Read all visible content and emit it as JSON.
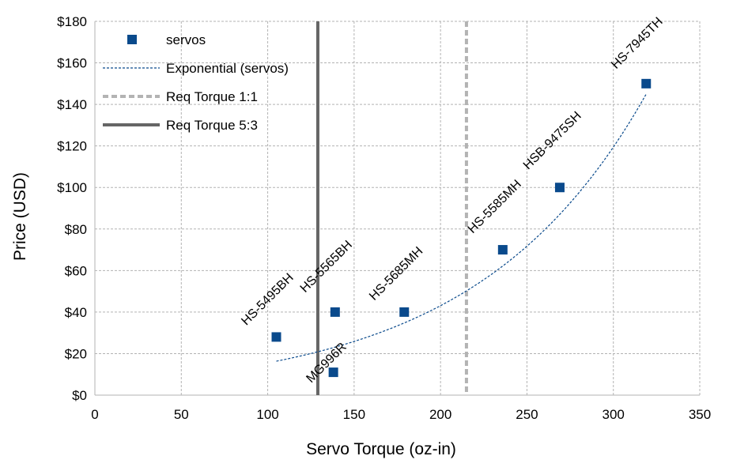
{
  "chart_data": {
    "type": "scatter",
    "title": "",
    "xlabel": "Servo Torque (oz-in)",
    "ylabel": "Price (USD)",
    "xlim": [
      0,
      350
    ],
    "ylim": [
      0,
      180
    ],
    "x_ticks": [
      0,
      50,
      100,
      150,
      200,
      250,
      300,
      350
    ],
    "y_ticks": [
      0,
      20,
      40,
      60,
      80,
      100,
      120,
      140,
      160,
      180
    ],
    "y_tick_labels": [
      "$0",
      "$20",
      "$40",
      "$60",
      "$80",
      "$100",
      "$120",
      "$140",
      "$160",
      "$180"
    ],
    "grid": true,
    "legend_position": "top-left",
    "series": [
      {
        "name": "servos",
        "marker": "square",
        "color": "#0a4a8c",
        "points": [
          {
            "label": "HS-5495BH",
            "x": 105,
            "y": 28
          },
          {
            "label": "MG996R",
            "x": 138,
            "y": 11
          },
          {
            "label": "HS-5565BH",
            "x": 139,
            "y": 40
          },
          {
            "label": "HS-5685MH",
            "x": 179,
            "y": 40
          },
          {
            "label": "HS-5585MH",
            "x": 236,
            "y": 70
          },
          {
            "label": "HSB-9475SH",
            "x": 269,
            "y": 100
          },
          {
            "label": "HS-7945TH",
            "x": 319,
            "y": 150
          }
        ]
      }
    ],
    "trendline": {
      "name": "Exponential (servos)",
      "type": "exponential",
      "a": 5.6,
      "b": 0.0102,
      "x_range": [
        105,
        319
      ],
      "color": "#0a4a8c"
    },
    "reference_lines": [
      {
        "name": "Req Torque 1:1",
        "x": 215,
        "color": "#b3b3b3",
        "style": "dashed"
      },
      {
        "name": "Req Torque 5:3",
        "x": 129,
        "color": "#666666",
        "style": "solid"
      }
    ]
  }
}
